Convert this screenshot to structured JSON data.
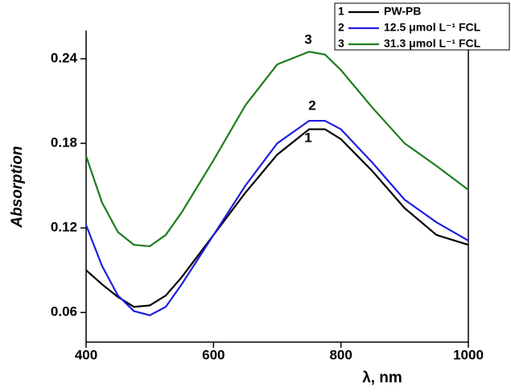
{
  "chart_data": {
    "type": "line",
    "x_label": "λ, nm",
    "y_label": "Absorption",
    "x": [
      400,
      425,
      450,
      475,
      500,
      525,
      550,
      600,
      650,
      700,
      750,
      775,
      800,
      850,
      900,
      950,
      1000
    ],
    "series": [
      {
        "label": "1",
        "name": "PW-PB",
        "color": "#000000",
        "values": [
          0.09,
          0.08,
          0.071,
          0.064,
          0.065,
          0.072,
          0.085,
          0.115,
          0.145,
          0.172,
          0.19,
          0.19,
          0.183,
          0.16,
          0.134,
          0.115,
          0.108
        ]
      },
      {
        "label": "2",
        "name": "12.5 μmol L⁻¹ FCL",
        "color": "#1f1fe0",
        "values": [
          0.122,
          0.093,
          0.072,
          0.061,
          0.058,
          0.064,
          0.08,
          0.115,
          0.15,
          0.18,
          0.196,
          0.196,
          0.19,
          0.166,
          0.14,
          0.124,
          0.111
        ]
      },
      {
        "label": "3",
        "name": "31.3 μmol L⁻¹ FCL",
        "color": "#1e7d1e",
        "values": [
          0.171,
          0.138,
          0.117,
          0.108,
          0.107,
          0.115,
          0.131,
          0.168,
          0.207,
          0.236,
          0.245,
          0.243,
          0.232,
          0.205,
          0.18,
          0.164,
          0.147
        ]
      }
    ],
    "xlim": [
      400,
      1000
    ],
    "xticks": [
      400,
      600,
      800,
      1000
    ],
    "ylim": [
      0.039,
      0.26
    ],
    "yticks": [
      0.06,
      0.12,
      0.18,
      0.24
    ],
    "legend": "top-right"
  }
}
